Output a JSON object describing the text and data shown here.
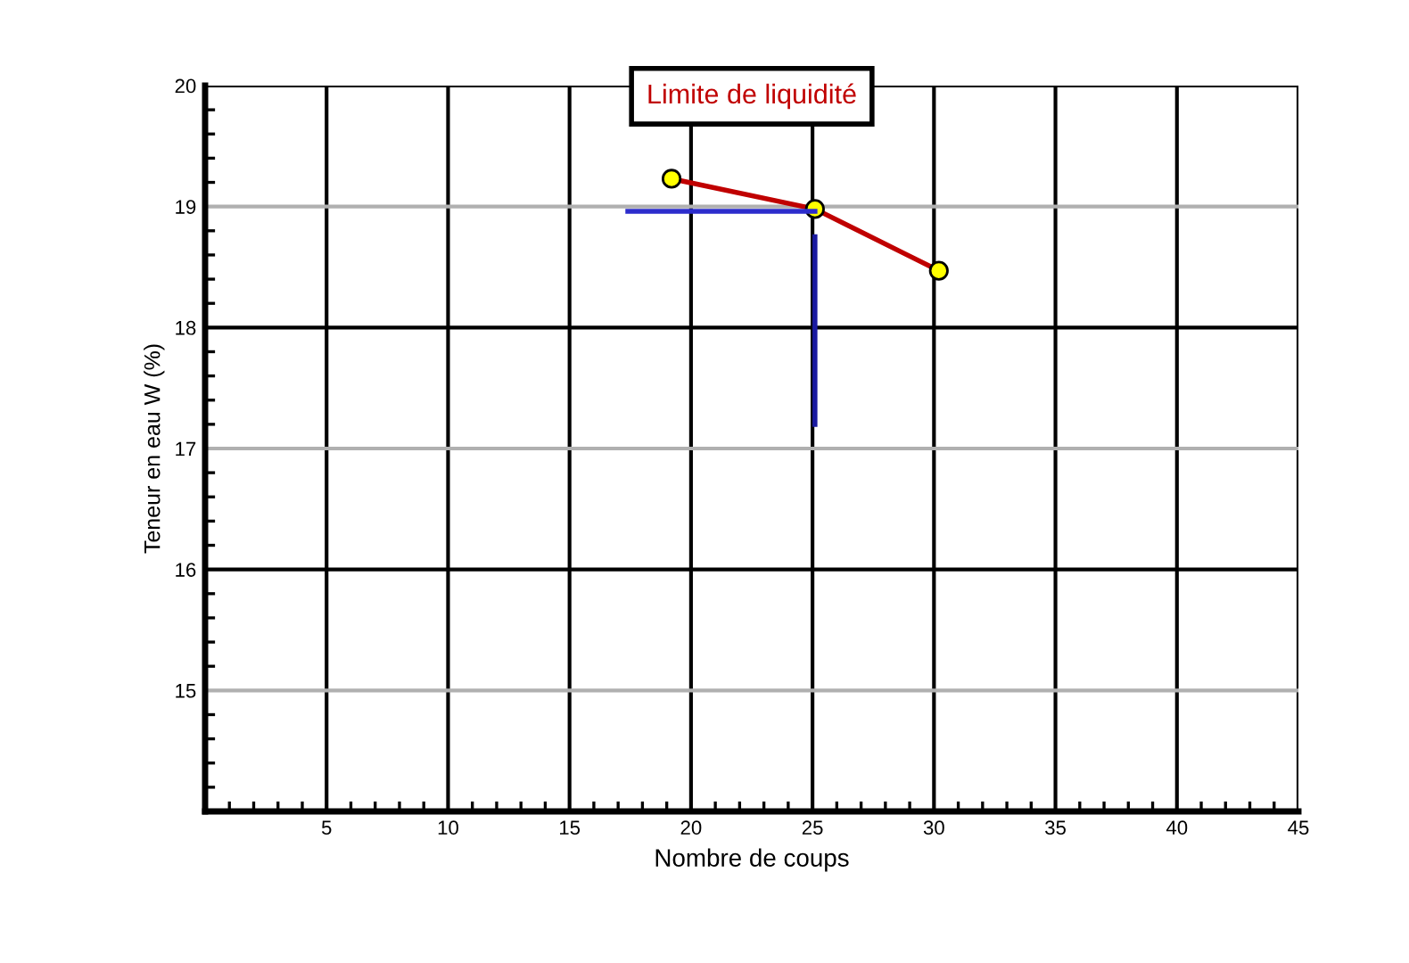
{
  "chart_data": {
    "type": "line",
    "title": "Limite de liquidité",
    "xlabel": "Nombre de coups",
    "ylabel": "Teneur en eau W (%)",
    "xlim": [
      0,
      45
    ],
    "xticks": [
      5,
      10,
      15,
      20,
      25,
      30,
      35,
      40,
      45
    ],
    "ylim": [
      14,
      20
    ],
    "yticks": [
      15,
      16,
      17,
      18,
      19,
      20
    ],
    "grid": true,
    "series": [
      {
        "x": [
          19.2,
          25.1,
          30.2
        ],
        "values": [
          19.23,
          18.98,
          18.47
        ],
        "color": "#c00000",
        "marker": "circle"
      },
      {
        "x": [
          25.1,
          25.1
        ],
        "values": [
          17.2,
          18.75
        ],
        "color": "#1a1aa0",
        "marker": "none"
      },
      {
        "x": [
          25.1,
          17.4
        ],
        "values": [
          18.96,
          18.96
        ],
        "color": "#2c2ccc",
        "marker": "none"
      }
    ]
  }
}
